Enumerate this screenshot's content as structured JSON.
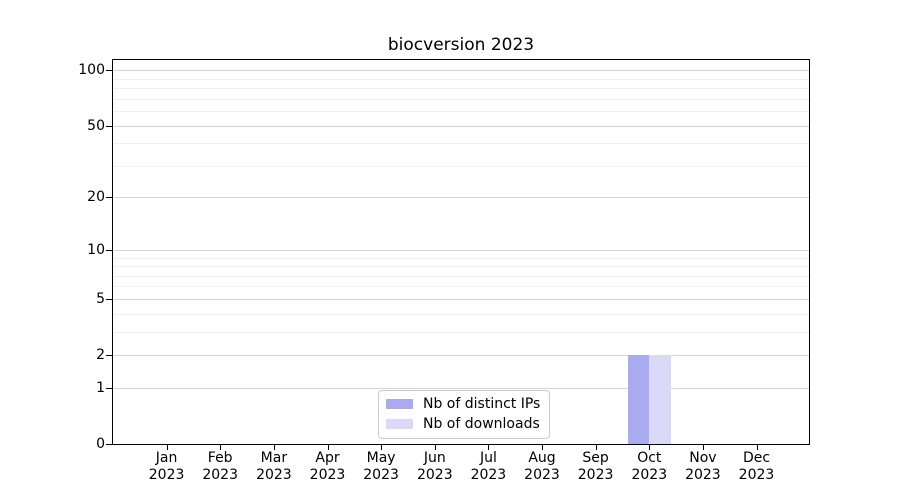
{
  "chart_data": {
    "type": "bar",
    "title": "biocversion 2023",
    "categories": [
      "Jan",
      "Feb",
      "Mar",
      "Apr",
      "May",
      "Jun",
      "Jul",
      "Aug",
      "Sep",
      "Oct",
      "Nov",
      "Dec"
    ],
    "category_year": "2023",
    "series": [
      {
        "name": "Nb of distinct IPs",
        "color": "#aaaaf0",
        "values": [
          0,
          0,
          0,
          0,
          0,
          0,
          0,
          0,
          0,
          2,
          0,
          0
        ]
      },
      {
        "name": "Nb of downloads",
        "color": "#d9d9f7",
        "values": [
          0,
          0,
          0,
          0,
          0,
          0,
          0,
          0,
          0,
          2,
          0,
          0
        ]
      }
    ],
    "yscale": "log1p",
    "ylim": [
      0,
      115
    ],
    "y_major_ticks": [
      0,
      1,
      2,
      5,
      10,
      20,
      50,
      100
    ],
    "y_minor_ticks": [
      3,
      4,
      6,
      7,
      8,
      9,
      30,
      40,
      60,
      70,
      80,
      90
    ],
    "grid": "horizontal",
    "legend_position": "lower center",
    "colors": {
      "major_grid": "#d4d4d4",
      "minor_grid": "#f0f0f0",
      "spine": "#000000",
      "text": "#000000",
      "background": "#ffffff"
    }
  }
}
